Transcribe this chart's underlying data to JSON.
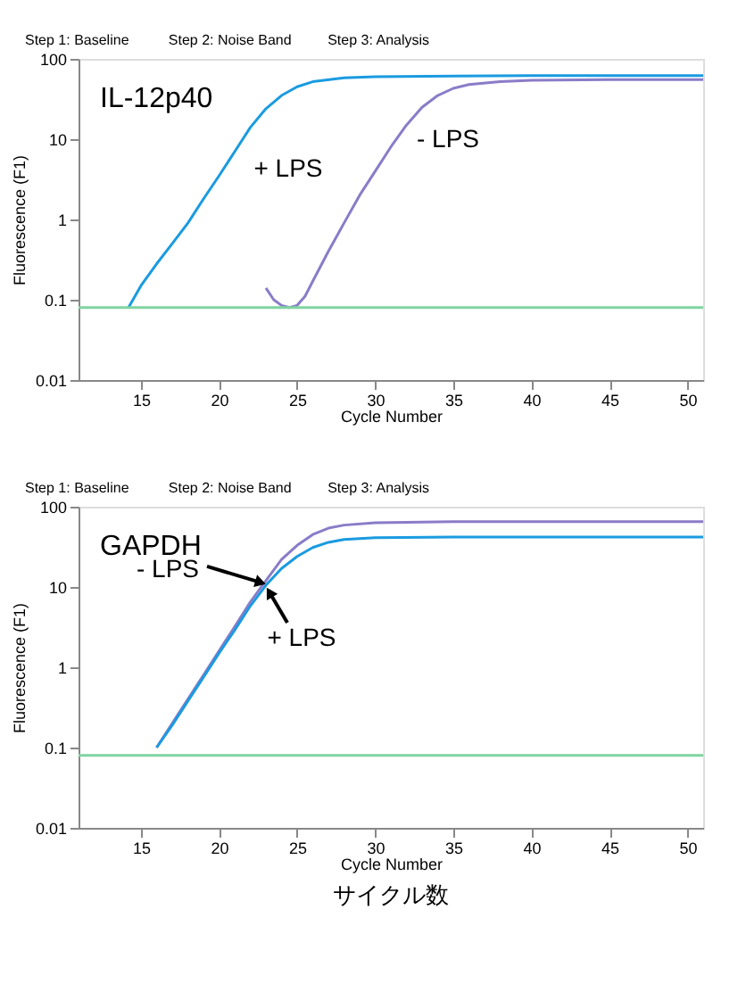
{
  "chart_data": [
    {
      "type": "line",
      "title": "IL-12p40",
      "xlabel": "Cycle Number",
      "ylabel": "Fluorescence (F1)",
      "log": "y",
      "grid": false,
      "legend": false,
      "marker": "none",
      "line_style": "solid",
      "xlim": [
        11,
        51
      ],
      "xticks": [
        15,
        20,
        25,
        30,
        35,
        40,
        45,
        50
      ],
      "ylim": [
        0.01,
        100
      ],
      "yticks": [
        0.01,
        0.1,
        1,
        10,
        100
      ],
      "annotations": [
        "Step 1: Baseline",
        "Step 2: Noise Band",
        "Step 3: Analysis"
      ],
      "ref_lines": [
        {
          "axis": "y",
          "value": 0.08,
          "color": "#7fd4a0"
        }
      ],
      "series": [
        {
          "name": "+ LPS",
          "color": "#1a9be0",
          "x": [
            14.2,
            15,
            16,
            17,
            18,
            19,
            20,
            21,
            22,
            23,
            24,
            25,
            26,
            28,
            30,
            35,
            40,
            45,
            51
          ],
          "values": [
            0.08,
            0.15,
            0.28,
            0.5,
            0.9,
            1.8,
            3.5,
            7,
            14,
            24,
            35,
            45,
            52,
            58,
            60,
            61,
            62,
            62,
            62
          ]
        },
        {
          "name": "- LPS",
          "color": "#8a7cc8",
          "x": [
            23,
            23.5,
            24,
            24.5,
            25,
            25.5,
            26,
            27,
            28,
            29,
            30,
            31,
            32,
            33,
            34,
            35,
            36,
            38,
            40,
            45,
            51
          ],
          "values": [
            0.14,
            0.1,
            0.085,
            0.08,
            0.085,
            0.11,
            0.17,
            0.4,
            0.9,
            2,
            4,
            8,
            15,
            25,
            35,
            43,
            48,
            52,
            54,
            55,
            55
          ]
        }
      ]
    },
    {
      "type": "line",
      "title": "GAPDH",
      "xlabel": "Cycle Number",
      "ylabel": "Fluorescence (F1)",
      "log": "y",
      "grid": false,
      "legend": false,
      "marker": "none",
      "line_style": "solid",
      "xlim": [
        11,
        51
      ],
      "xticks": [
        15,
        20,
        25,
        30,
        35,
        40,
        45,
        50
      ],
      "ylim": [
        0.01,
        100
      ],
      "yticks": [
        0.01,
        0.1,
        1,
        10,
        100
      ],
      "annotations": [
        "Step 1: Baseline",
        "Step 2: Noise Band",
        "Step 3: Analysis",
        "サイクル数"
      ],
      "ref_lines": [
        {
          "axis": "y",
          "value": 0.08,
          "color": "#7fd4a0"
        }
      ],
      "series": [
        {
          "name": "- LPS",
          "color": "#8a7cc8",
          "x": [
            16,
            17,
            18,
            19,
            20,
            21,
            22,
            23,
            24,
            25,
            26,
            27,
            28,
            30,
            35,
            40,
            45,
            51
          ],
          "values": [
            0.1,
            0.2,
            0.4,
            0.8,
            1.6,
            3.2,
            6.5,
            12,
            22,
            33,
            45,
            54,
            59,
            63,
            65,
            65,
            65,
            65
          ]
        },
        {
          "name": "+ LPS",
          "color": "#1a9be0",
          "x": [
            16,
            17,
            18,
            19,
            20,
            21,
            22,
            23,
            24,
            25,
            26,
            27,
            28,
            30,
            35,
            40,
            45,
            51
          ],
          "values": [
            0.1,
            0.19,
            0.38,
            0.75,
            1.5,
            2.9,
            5.8,
            10.5,
            17,
            24,
            31,
            36,
            39,
            41,
            42,
            42,
            42,
            42
          ]
        }
      ]
    }
  ]
}
